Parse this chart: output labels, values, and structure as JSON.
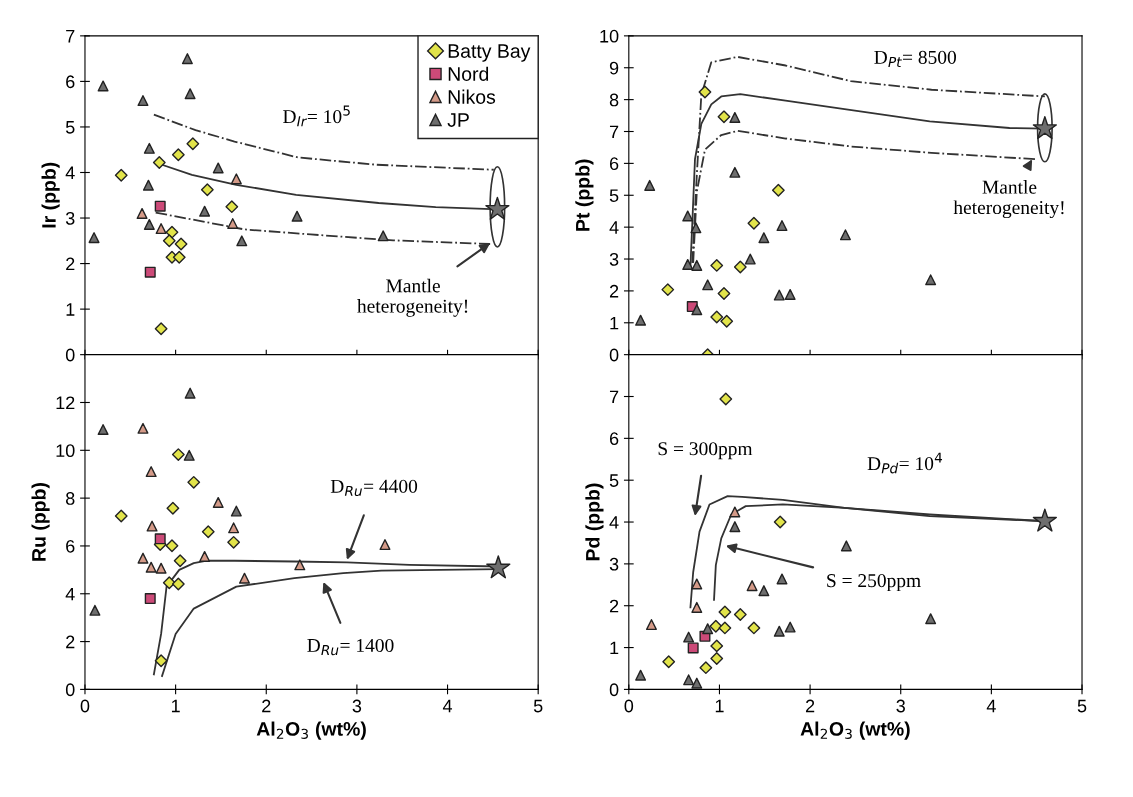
{
  "chart_data": [
    {
      "type": "scatter",
      "ylabel": "Ir (ppb)",
      "xlim": [
        0,
        5
      ],
      "xticks": [
        0,
        1,
        2,
        3,
        4,
        5
      ],
      "ylim": [
        0,
        7
      ],
      "yticks": [
        0,
        1,
        2,
        3,
        4,
        5,
        6,
        7
      ],
      "tick_labels": "y",
      "legend": "top right",
      "annotations": [
        "D$_{Ir}$= 10$^{5}$",
        {
          "text": "Mantle\nheterogeneity!",
          "x": 4.47,
          "y": 2.45
        }
      ],
      "series": [
        {
          "name": "Batty Bay",
          "type": "scatter",
          "marker": "diamond",
          "color": "#e2e44a",
          "x": [
            0.4,
            0.82,
            1.03,
            1.19,
            1.35,
            1.62,
            0.96,
            0.93,
            1.06,
            0.96,
            1.04,
            0.84
          ],
          "values": [
            3.94,
            4.22,
            4.39,
            4.63,
            3.62,
            3.25,
            2.69,
            2.5,
            2.43,
            2.14,
            2.14,
            0.57
          ]
        },
        {
          "name": "Nord",
          "type": "scatter",
          "marker": "square",
          "color": "#cc4a78",
          "x": [
            0.83,
            0.72
          ],
          "values": [
            3.26,
            1.81
          ]
        },
        {
          "name": "Nikos",
          "type": "scatter",
          "marker": "triangle",
          "color": "#d49a88",
          "x": [
            0.63,
            0.84,
            1.63,
            1.67
          ],
          "values": [
            3.1,
            2.77,
            2.88,
            3.86
          ]
        },
        {
          "name": "JP",
          "type": "scatter",
          "marker": "triangle",
          "color": "#6e6e6e",
          "x": [
            0.2,
            1.13,
            1.16,
            0.64,
            0.71,
            0.7,
            1.47,
            1.32,
            1.73,
            0.1,
            3.29,
            2.34,
            0.71
          ],
          "values": [
            5.9,
            6.5,
            5.73,
            5.58,
            4.53,
            3.72,
            4.1,
            3.15,
            2.5,
            2.57,
            2.61,
            3.04,
            2.86
          ]
        },
        {
          "type": "line",
          "line_style": "solid",
          "color": "#333333",
          "x": [
            0.85,
            1.18,
            1.67,
            2.33,
            3.24,
            3.87,
            4.55
          ],
          "values": [
            4.17,
            3.95,
            3.73,
            3.51,
            3.33,
            3.24,
            3.19
          ]
        },
        {
          "type": "line",
          "line_style": "dashed",
          "color": "#333333",
          "x": [
            0.76,
            1.22,
            1.65,
            2.35,
            3.22,
            4.51
          ],
          "values": [
            5.27,
            4.93,
            4.68,
            4.33,
            4.17,
            4.06
          ]
        },
        {
          "type": "line",
          "line_style": "dashed",
          "color": "#333333",
          "x": [
            0.78,
            1.76,
            2.49,
            3.4,
            4.47
          ],
          "values": [
            3.12,
            2.75,
            2.64,
            2.51,
            2.43
          ]
        },
        {
          "type": "scatter",
          "marker": "star",
          "color": "#6e6e6e",
          "x": [
            4.55
          ],
          "values": [
            3.19
          ]
        }
      ]
    },
    {
      "type": "scatter",
      "ylabel": "Pt (ppb)",
      "xlim": [
        0,
        5
      ],
      "xticks": [
        0,
        1,
        2,
        3,
        4,
        5
      ],
      "ylim": [
        0,
        10
      ],
      "yticks": [
        0,
        1,
        2,
        3,
        4,
        5,
        6,
        7,
        8,
        9,
        10
      ],
      "tick_labels": "y",
      "annotations": [
        "D$_{Pt}$= 8500",
        {
          "text": "Mantle\nheterogeneity!",
          "x": 4.45,
          "y": 6.13
        }
      ],
      "series": [
        {
          "type": "scatter",
          "marker": "diamond",
          "color": "#e2e44a",
          "x": [
            0.84,
            1.05,
            1.65,
            1.38,
            0.97,
            1.23,
            0.43,
            1.05,
            0.97,
            1.08,
            0.87
          ],
          "values": [
            8.24,
            7.46,
            5.16,
            4.12,
            2.8,
            2.75,
            2.04,
            1.92,
            1.18,
            1.05,
            0
          ]
        },
        {
          "type": "scatter",
          "marker": "square",
          "color": "#cc4a78",
          "x": [
            0.7
          ],
          "values": [
            1.51
          ]
        },
        {
          "type": "scatter",
          "marker": "triangle",
          "color": "#6e6e6e",
          "x": [
            1.17,
            1.17,
            0.23,
            0.65,
            0.74,
            1.69,
            1.49,
            2.39,
            1.34,
            0.65,
            0.75,
            0.87,
            1.66,
            1.78,
            3.33,
            0.75,
            0.13
          ],
          "values": [
            7.44,
            5.72,
            5.31,
            4.35,
            3.98,
            4.05,
            3.67,
            3.76,
            3.0,
            2.83,
            2.8,
            2.19,
            1.87,
            1.89,
            2.35,
            1.41,
            1.08
          ]
        },
        {
          "type": "line",
          "line_style": "solid",
          "color": "#333333",
          "x": [
            0.68,
            0.7,
            0.73,
            0.8,
            0.91,
            1.02,
            1.23,
            1.73,
            2.38,
            3.32,
            4.2,
            4.59
          ],
          "values": [
            2.78,
            4.1,
            6.13,
            7.24,
            7.85,
            8.1,
            8.17,
            7.97,
            7.7,
            7.32,
            7.11,
            7.09
          ]
        },
        {
          "type": "line",
          "line_style": "dashed",
          "color": "#333333",
          "x": [
            0.7,
            0.75,
            0.8,
            0.91,
            1.2,
            1.73,
            2.45,
            3.34,
            4.59
          ],
          "values": [
            2.88,
            5.62,
            8.15,
            9.17,
            9.34,
            9.07,
            8.58,
            8.31,
            8.1
          ]
        },
        {
          "type": "line",
          "line_style": "dashed",
          "color": "#333333",
          "x": [
            0.71,
            0.75,
            0.84,
            1.02,
            1.2,
            1.73,
            2.45,
            3.34,
            4.5
          ],
          "values": [
            2.88,
            5.11,
            6.43,
            6.89,
            7.02,
            6.78,
            6.53,
            6.33,
            6.13
          ]
        },
        {
          "type": "scatter",
          "marker": "star",
          "color": "#6e6e6e",
          "x": [
            4.59
          ],
          "values": [
            7.09
          ]
        }
      ]
    },
    {
      "type": "scatter",
      "ylabel": "Ru (ppb)",
      "xlabel": "Al$_{2}$O$_{3}$ (wt%)",
      "xlim": [
        0,
        5
      ],
      "xticks": [
        0,
        1,
        2,
        3,
        4,
        5
      ],
      "ylim": [
        0,
        14
      ],
      "yticks": [
        0,
        2,
        4,
        6,
        8,
        10,
        12
      ],
      "annotations": [
        {
          "text": "D$_{Ru}$= 4400",
          "x": 2.89,
          "y": 5.42
        },
        "D$_{Ru}$= 1400"
      ],
      "series": [
        {
          "type": "scatter",
          "marker": "diamond",
          "color": "#e2e44a",
          "x": [
            0.4,
            1.03,
            1.2,
            0.97,
            1.36,
            1.64,
            0.83,
            0.96,
            1.05,
            0.93,
            1.03,
            0.84
          ],
          "values": [
            7.25,
            9.82,
            8.66,
            7.58,
            6.59,
            6.15,
            6.06,
            6.01,
            5.38,
            4.46,
            4.41,
            1.2
          ]
        },
        {
          "type": "scatter",
          "marker": "square",
          "color": "#cc4a78",
          "x": [
            0.83,
            0.72
          ],
          "values": [
            6.3,
            3.8
          ]
        },
        {
          "type": "scatter",
          "marker": "triangle",
          "color": "#d49a88",
          "x": [
            0.64,
            0.73,
            1.47,
            0.74,
            1.64,
            0.64,
            0.73,
            0.84,
            1.32,
            1.76,
            2.37,
            3.31
          ],
          "values": [
            10.92,
            9.11,
            7.82,
            6.83,
            6.76,
            5.49,
            5.11,
            5.07,
            5.56,
            4.65,
            5.21,
            6.06
          ]
        },
        {
          "type": "scatter",
          "marker": "triangle",
          "color": "#6e6e6e",
          "x": [
            0.2,
            1.16,
            1.15,
            1.67,
            0.11
          ],
          "values": [
            10.87,
            12.39,
            9.79,
            7.46,
            3.31
          ]
        },
        {
          "type": "line",
          "line_style": "solid",
          "color": "#333333",
          "x": [
            0.76,
            0.84,
            0.9,
            1.04,
            1.2,
            1.33,
            1.65,
            2.31,
            2.89,
            3.58,
            4.56
          ],
          "values": [
            0.63,
            2.32,
            4.3,
            5.0,
            5.28,
            5.38,
            5.38,
            5.35,
            5.31,
            5.21,
            5.14
          ]
        },
        {
          "type": "line",
          "line_style": "solid",
          "color": "#333333",
          "x": [
            0.85,
            1.0,
            1.2,
            1.67,
            2.31,
            2.85,
            3.27,
            4.56
          ],
          "values": [
            0.56,
            2.32,
            3.38,
            4.3,
            4.65,
            4.86,
            4.97,
            5.03
          ]
        },
        {
          "type": "scatter",
          "marker": "star",
          "color": "#6e6e6e",
          "x": [
            4.56
          ],
          "values": [
            5.08
          ]
        }
      ]
    },
    {
      "type": "scatter",
      "ylabel": "Pd (ppb)",
      "xlabel": "Al$_{2}$O$_{3}$ (wt%)",
      "xlim": [
        0,
        5
      ],
      "xticks": [
        0,
        1,
        2,
        3,
        4,
        5
      ],
      "ylim": [
        0,
        8
      ],
      "yticks": [
        0,
        1,
        2,
        3,
        4,
        5,
        6,
        7
      ],
      "annotations": [
        "D$_{Pd}$= 10$^{4}$",
        "S = 300ppm",
        "S = 250ppm"
      ],
      "series": [
        {
          "type": "scatter",
          "marker": "diamond",
          "color": "#e2e44a",
          "x": [
            1.07,
            1.67,
            1.06,
            1.23,
            0.96,
            1.06,
            1.38,
            0.97,
            0.97,
            0.85,
            0.44
          ],
          "values": [
            6.94,
            4.0,
            1.85,
            1.79,
            1.51,
            1.47,
            1.47,
            1.04,
            0.74,
            0.52,
            0.66
          ]
        },
        {
          "type": "scatter",
          "marker": "square",
          "color": "#cc4a78",
          "x": [
            0.71,
            0.84
          ],
          "values": [
            0.99,
            1.27
          ]
        },
        {
          "type": "scatter",
          "marker": "triangle",
          "color": "#d49a88",
          "x": [
            1.17,
            1.36,
            0.75,
            0.75,
            0.25
          ],
          "values": [
            4.24,
            2.48,
            2.52,
            1.96,
            1.55
          ]
        },
        {
          "type": "scatter",
          "marker": "triangle",
          "color": "#6e6e6e",
          "x": [
            1.17,
            2.4,
            1.69,
            1.49,
            0.66,
            1.66,
            1.78,
            3.33,
            0.87,
            0.13,
            0.66,
            0.75
          ],
          "values": [
            3.89,
            3.43,
            2.64,
            2.36,
            1.25,
            1.39,
            1.49,
            1.69,
            1.45,
            0.34,
            0.23,
            0.15
          ]
        },
        {
          "type": "line",
          "line_style": "solid",
          "color": "#333333",
          "x": [
            0.68,
            0.71,
            0.78,
            0.89,
            1.09,
            1.25,
            1.7,
            2.38,
            3.32,
            4.59
          ],
          "values": [
            1.96,
            2.8,
            3.77,
            4.42,
            4.62,
            4.6,
            4.53,
            4.34,
            4.18,
            4.02
          ]
        },
        {
          "type": "line",
          "line_style": "solid",
          "color": "#333333",
          "x": [
            0.94,
            0.96,
            1.02,
            1.13,
            1.29,
            1.7,
            2.38,
            3.32,
            4.59
          ],
          "values": [
            2.14,
            2.97,
            3.61,
            4.18,
            4.38,
            4.42,
            4.34,
            4.14,
            4.02
          ]
        },
        {
          "type": "scatter",
          "marker": "star",
          "color": "#6e6e6e",
          "x": [
            4.59
          ],
          "values": [
            4.02
          ]
        }
      ]
    }
  ]
}
